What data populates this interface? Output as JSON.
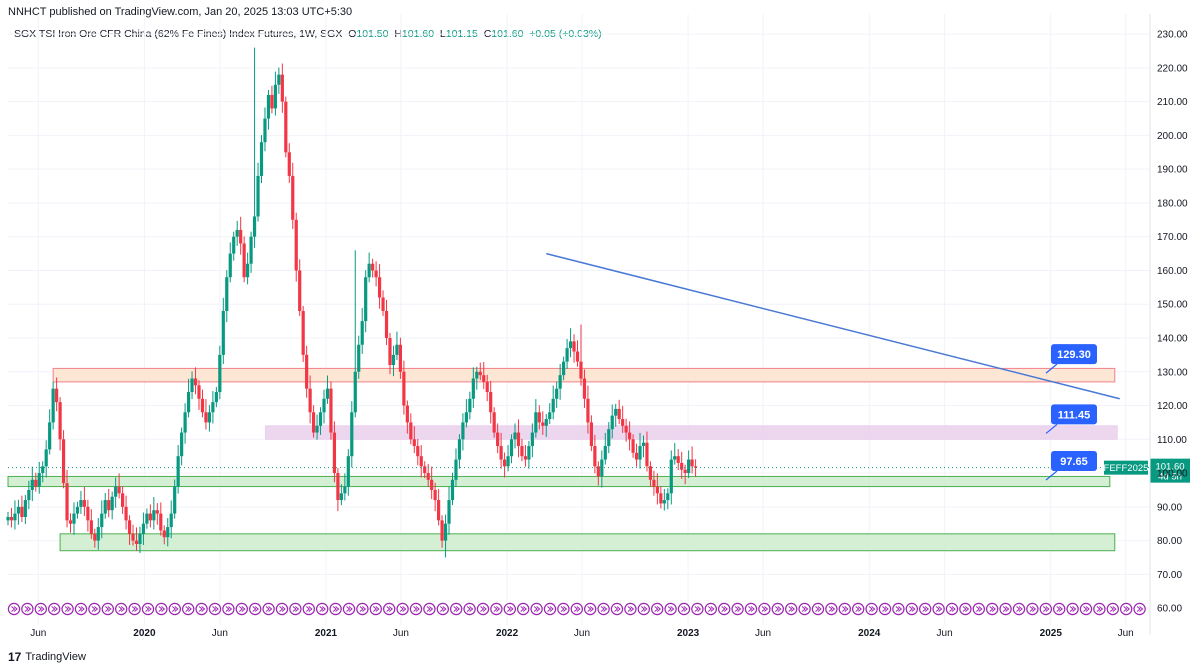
{
  "header": {
    "published": "NNHCT published on TradingView.com, Jan 20, 2025 13:03 UTC+5:30"
  },
  "legend": {
    "symbol": "SGX TSI Iron Ore CFR China (62% Fe Fines) Index Futures, 1W, SGX",
    "open_label": "O",
    "open": "101.50",
    "high_label": "H",
    "high": "101.60",
    "low_label": "L",
    "low": "101.15",
    "close_label": "C",
    "close": "101.60",
    "change": "+0.05 (+0.03%)"
  },
  "footer": {
    "brand": "TradingView",
    "logo": "17"
  },
  "colors": {
    "up": "#089981",
    "down": "#f23645",
    "trend": "#4a78d6",
    "badge": "#2962ff",
    "resistance_fill": "#fde3cc",
    "resistance_stroke": "#f0808a",
    "zone_fill": "#ead0ec",
    "support_fill": "#cdeccd",
    "support_stroke": "#4caf50",
    "icon": "#9c27b0"
  },
  "chart_data": {
    "type": "candlestick",
    "timeframe": "1W",
    "ylim": [
      55,
      233
    ],
    "y_ticks": [
      60,
      70,
      80,
      90,
      100,
      110,
      120,
      130,
      140,
      150,
      160,
      170,
      180,
      190,
      200,
      210,
      220,
      230
    ],
    "x_range": [
      "2019-04-01",
      "2025-07-20"
    ],
    "x_ticks": [
      {
        "date": "2019-06-01",
        "label": "Jun",
        "bold": false
      },
      {
        "date": "2020-01-01",
        "label": "2020",
        "bold": true
      },
      {
        "date": "2020-06-01",
        "label": "Jun",
        "bold": false
      },
      {
        "date": "2021-01-01",
        "label": "2021",
        "bold": true
      },
      {
        "date": "2021-06-01",
        "label": "Jun",
        "bold": false
      },
      {
        "date": "2022-01-01",
        "label": "2022",
        "bold": true
      },
      {
        "date": "2022-06-01",
        "label": "Jun",
        "bold": false
      },
      {
        "date": "2023-01-01",
        "label": "2023",
        "bold": true
      },
      {
        "date": "2023-06-01",
        "label": "Jun",
        "bold": false
      },
      {
        "date": "2024-01-01",
        "label": "2024",
        "bold": true
      },
      {
        "date": "2024-06-01",
        "label": "Jun",
        "bold": false
      },
      {
        "date": "2025-01-01",
        "label": "2025",
        "bold": true
      },
      {
        "date": "2025-06-01",
        "label": "Jun",
        "bold": false
      }
    ],
    "start_date": "2019-04-01",
    "closes": [
      87,
      86,
      88,
      90,
      87,
      92,
      95,
      98,
      96,
      100,
      102,
      107,
      115,
      125,
      121,
      110,
      97,
      86,
      85,
      88,
      90,
      92,
      90,
      86,
      82,
      80,
      84,
      88,
      92,
      89,
      93,
      96,
      94,
      90,
      86,
      82,
      80,
      79,
      82,
      85,
      88,
      86,
      89,
      88,
      83,
      81,
      84,
      88,
      96,
      105,
      112,
      118,
      124,
      128,
      126,
      122,
      118,
      115,
      118,
      121,
      124,
      135,
      148,
      158,
      165,
      170,
      172,
      168,
      158,
      162,
      170,
      176,
      188,
      198,
      205,
      212,
      208,
      215,
      218,
      210,
      195,
      188,
      175,
      160,
      148,
      135,
      125,
      118,
      112,
      114,
      118,
      122,
      125,
      112,
      100,
      92,
      94,
      96,
      105,
      118,
      130,
      138,
      145,
      158,
      162,
      160,
      158,
      152,
      148,
      140,
      132,
      135,
      138,
      130,
      120,
      115,
      110,
      108,
      105,
      102,
      100,
      98,
      95,
      92,
      86,
      80,
      85,
      92,
      98,
      104,
      110,
      115,
      118,
      122,
      128,
      130,
      129,
      127,
      124,
      118,
      112,
      108,
      104,
      102,
      105,
      110,
      112,
      108,
      105,
      104,
      108,
      112,
      118,
      115,
      114,
      116,
      118,
      122,
      125,
      129,
      133,
      137,
      139,
      136,
      133,
      128,
      122,
      115,
      108,
      102,
      99,
      104,
      108,
      113,
      117,
      119,
      116,
      114,
      112,
      110,
      106,
      104,
      108,
      109,
      102,
      98,
      96,
      94,
      91,
      92,
      94,
      104,
      105,
      103,
      101,
      100,
      104,
      102,
      101.6
    ],
    "tall_spikes": [
      {
        "week": 71,
        "high": 226
      },
      {
        "week": 100,
        "high": 166
      },
      {
        "week": 126,
        "high": 75
      },
      {
        "week": 165,
        "high": 144
      }
    ],
    "trendline": {
      "from": {
        "date": "2022-03-21",
        "value": 165
      },
      "to": {
        "date": "2025-05-20",
        "value": 122
      }
    },
    "zones": [
      {
        "name": "resistance",
        "from_date": "2019-07-01",
        "to_date": "2025-05-10",
        "low": 127,
        "high": 131
      },
      {
        "name": "mid-zone",
        "from_date": "2020-09-01",
        "to_date": "2025-05-15",
        "low": 110,
        "high": 114
      },
      {
        "name": "support-upper",
        "from_date": "2019-04-01",
        "to_date": "2025-04-30",
        "low": 96,
        "high": 99
      },
      {
        "name": "support-lower",
        "from_date": "2019-07-15",
        "to_date": "2025-05-10",
        "low": 77,
        "high": 82
      }
    ],
    "callouts": [
      {
        "label": "129.30",
        "value": 129.3
      },
      {
        "label": "111.45",
        "value": 111.45
      },
      {
        "label": "97.65",
        "value": 97.65
      }
    ],
    "last_price": {
      "symbol": "FEFF2025",
      "value": "101.60",
      "countdown": "4d 5h",
      "level": 101.6
    }
  }
}
